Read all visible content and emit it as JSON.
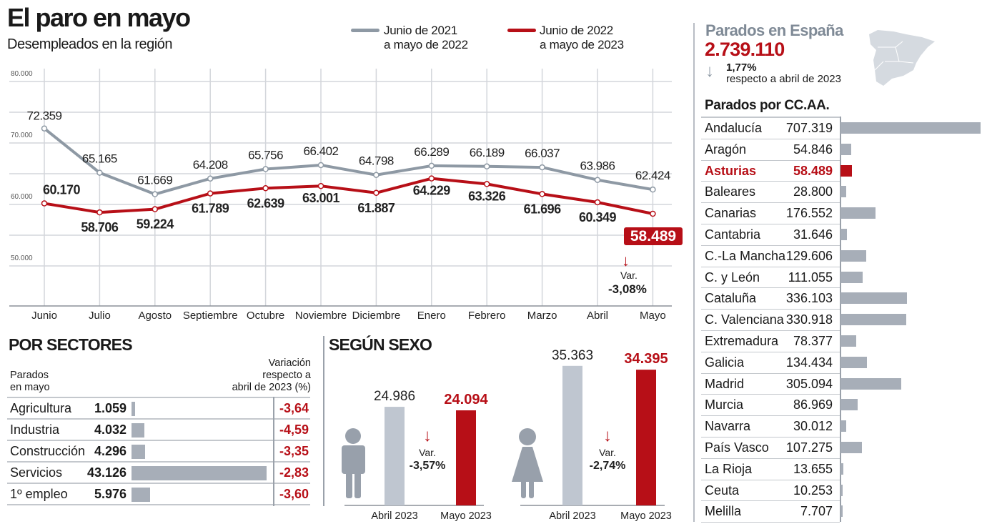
{
  "header": {
    "title": "El paro en mayo",
    "subtitle": "Desempleados en la región"
  },
  "legend": [
    {
      "line1": "Junio de 2021",
      "line2": "a mayo de 2022",
      "color": "#8e99a4"
    },
    {
      "line1": "Junio de 2022",
      "line2": "a mayo de 2023",
      "color": "#b70f17"
    }
  ],
  "chart_data": [
    {
      "type": "line",
      "title": "El paro en mayo",
      "categories": [
        "Junio",
        "Julio",
        "Agosto",
        "Septiembre",
        "Octubre",
        "Noviembre",
        "Diciembre",
        "Enero",
        "Febrero",
        "Marzo",
        "Abril",
        "Mayo"
      ],
      "yticks": [
        "80.000",
        "70.000",
        "60.000",
        "50.000"
      ],
      "ytick_values": [
        80000,
        70000,
        60000,
        50000
      ],
      "ylim": [
        45000,
        80000
      ],
      "grid": true,
      "series": [
        {
          "name": "Junio de 2021 a mayo de 2022",
          "color": "#8e99a4",
          "values": [
            72359,
            65165,
            61669,
            64208,
            65756,
            66402,
            64798,
            66289,
            66189,
            66037,
            63986,
            62424
          ],
          "labels": [
            "72.359",
            "65.165",
            "61.669",
            "64.208",
            "65.756",
            "66.402",
            "64.798",
            "66.289",
            "66.189",
            "66.037",
            "63.986",
            "62.424"
          ]
        },
        {
          "name": "Junio de 2022 a mayo de 2023",
          "color": "#b70f17",
          "values": [
            60170,
            58706,
            59224,
            61789,
            62639,
            63001,
            61887,
            64229,
            63326,
            61696,
            60349,
            58489
          ],
          "labels": [
            "60.170",
            "58.706",
            "59.224",
            "61.789",
            "62.639",
            "63.001",
            "61.887",
            "64.229",
            "63.326",
            "61.696",
            "60.349",
            "58.489"
          ]
        }
      ],
      "annotation": {
        "highlight": "58.489",
        "var_label": "Var.",
        "var_value": "-3,08%"
      }
    },
    {
      "type": "bar",
      "title": "POR SECTORES",
      "header_left": "Parados en mayo",
      "header_right": [
        "Variación",
        "respecto a",
        "abril de 2023 (%)"
      ],
      "categories": [
        "Agricultura",
        "Industria",
        "Construcción",
        "Servicios",
        "1º empleo"
      ],
      "values": [
        1059,
        4032,
        4296,
        43126,
        5976
      ],
      "labels": [
        "1.059",
        "4.032",
        "4.296",
        "43.126",
        "5.976"
      ],
      "variation": [
        "-3,64",
        "-4,59",
        "-3,35",
        "-2,83",
        "-3,60"
      ]
    },
    {
      "type": "bar",
      "title": "SEGÚN SEXO",
      "categories": [
        "Abril 2023",
        "Mayo 2023"
      ],
      "groups": [
        {
          "name": "Hombres",
          "values": [
            24986,
            24094
          ],
          "labels": [
            "24.986",
            "24.094"
          ],
          "var_label": "Var.",
          "var_value": "-3,57%"
        },
        {
          "name": "Mujeres",
          "values": [
            35363,
            34395
          ],
          "labels": [
            "35.363",
            "34.395"
          ],
          "var_label": "Var.",
          "var_value": "-2,74%"
        }
      ]
    },
    {
      "type": "bar",
      "title": "Parados por CC.AA.",
      "categories": [
        "Andalucía",
        "Aragón",
        "Asturias",
        "Baleares",
        "Canarias",
        "Cantabria",
        "C.-La Mancha",
        "C. y León",
        "Cataluña",
        "C. Valenciana",
        "Extremadura",
        "Galicia",
        "Madrid",
        "Murcia",
        "Navarra",
        "País Vasco",
        "La Rioja",
        "Ceuta",
        "Melilla"
      ],
      "values": [
        707319,
        54846,
        58489,
        28800,
        176552,
        31646,
        129606,
        111055,
        336103,
        330918,
        78377,
        134434,
        305094,
        86969,
        30012,
        107275,
        13655,
        10253,
        7707
      ],
      "labels": [
        "707.319",
        "54.846",
        "58.489",
        "28.800",
        "176.552",
        "31.646",
        "129.606",
        "111.055",
        "336.103",
        "330.918",
        "78.377",
        "134.434",
        "305.094",
        "86.969",
        "30.012",
        "107.275",
        "13.655",
        "10.253",
        "7.707"
      ],
      "highlight": "Asturias"
    }
  ],
  "spain": {
    "title": "Parados en España",
    "total": "2.739.110",
    "change": "1,77%",
    "change_note": "respecto a abril de 2023"
  },
  "colors": {
    "gray": "#8e99a4",
    "red": "#b70f17",
    "lightgray": "#bfc6d0",
    "barGray": "#a7aeb8",
    "grid": "#d3d6db"
  }
}
